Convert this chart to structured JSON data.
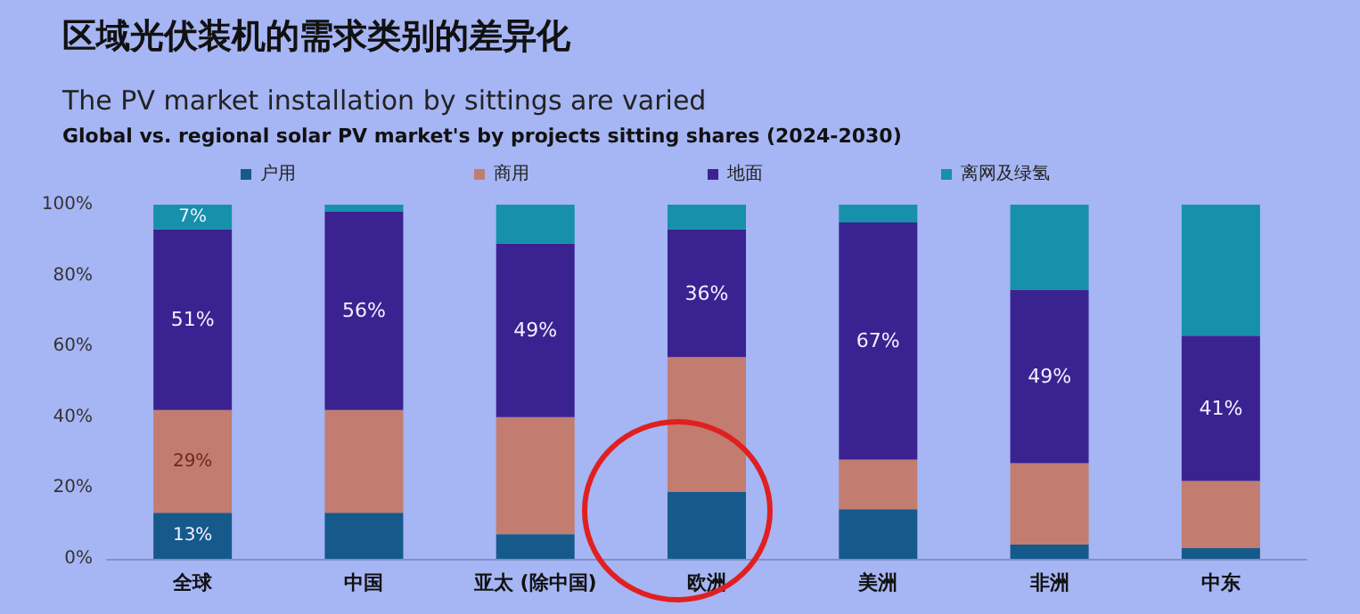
{
  "chart_data": {
    "type": "bar",
    "stacked": true,
    "title": "区域光伏装机的需求类别的差异化",
    "subtitle": "The PV market installation by sittings are varied",
    "annotations": [
      "Global vs. regional solar PV market's by projects sitting shares (2024-2030)"
    ],
    "categories": [
      "全球",
      "中国",
      "亚太 (除中国)",
      "欧洲",
      "美洲",
      "非洲",
      "中东"
    ],
    "series": [
      {
        "name": "户用",
        "color": "#165a8c",
        "values": [
          13,
          13,
          7,
          19,
          14,
          4,
          3
        ],
        "value_labels": [
          "13%",
          null,
          null,
          null,
          null,
          null,
          null
        ]
      },
      {
        "name": "商用",
        "color": "#c27d70",
        "values": [
          29,
          29,
          33,
          38,
          14,
          23,
          19
        ],
        "value_labels": [
          "29%",
          null,
          null,
          null,
          null,
          null,
          null
        ]
      },
      {
        "name": "地面",
        "color": "#3b2291",
        "values": [
          51,
          56,
          49,
          36,
          67,
          49,
          41
        ],
        "value_labels": [
          "51%",
          "56%",
          "49%",
          "36%",
          "67%",
          "49%",
          "41%"
        ]
      },
      {
        "name": "离网及绿氢",
        "color": "#1690ab",
        "values": [
          7,
          2,
          11,
          7,
          5,
          24,
          37
        ],
        "value_labels": [
          "7%",
          null,
          null,
          null,
          null,
          null,
          null
        ]
      }
    ],
    "ylim": [
      0,
      100
    ],
    "yticks": [
      {
        "value": 0,
        "label": "0%"
      },
      {
        "value": 20,
        "label": "20%"
      },
      {
        "value": 40,
        "label": "40%"
      },
      {
        "value": 60,
        "label": "60%"
      },
      {
        "value": 80,
        "label": "80%"
      },
      {
        "value": 100,
        "label": "100%"
      }
    ],
    "grid": false,
    "legend": "top"
  }
}
